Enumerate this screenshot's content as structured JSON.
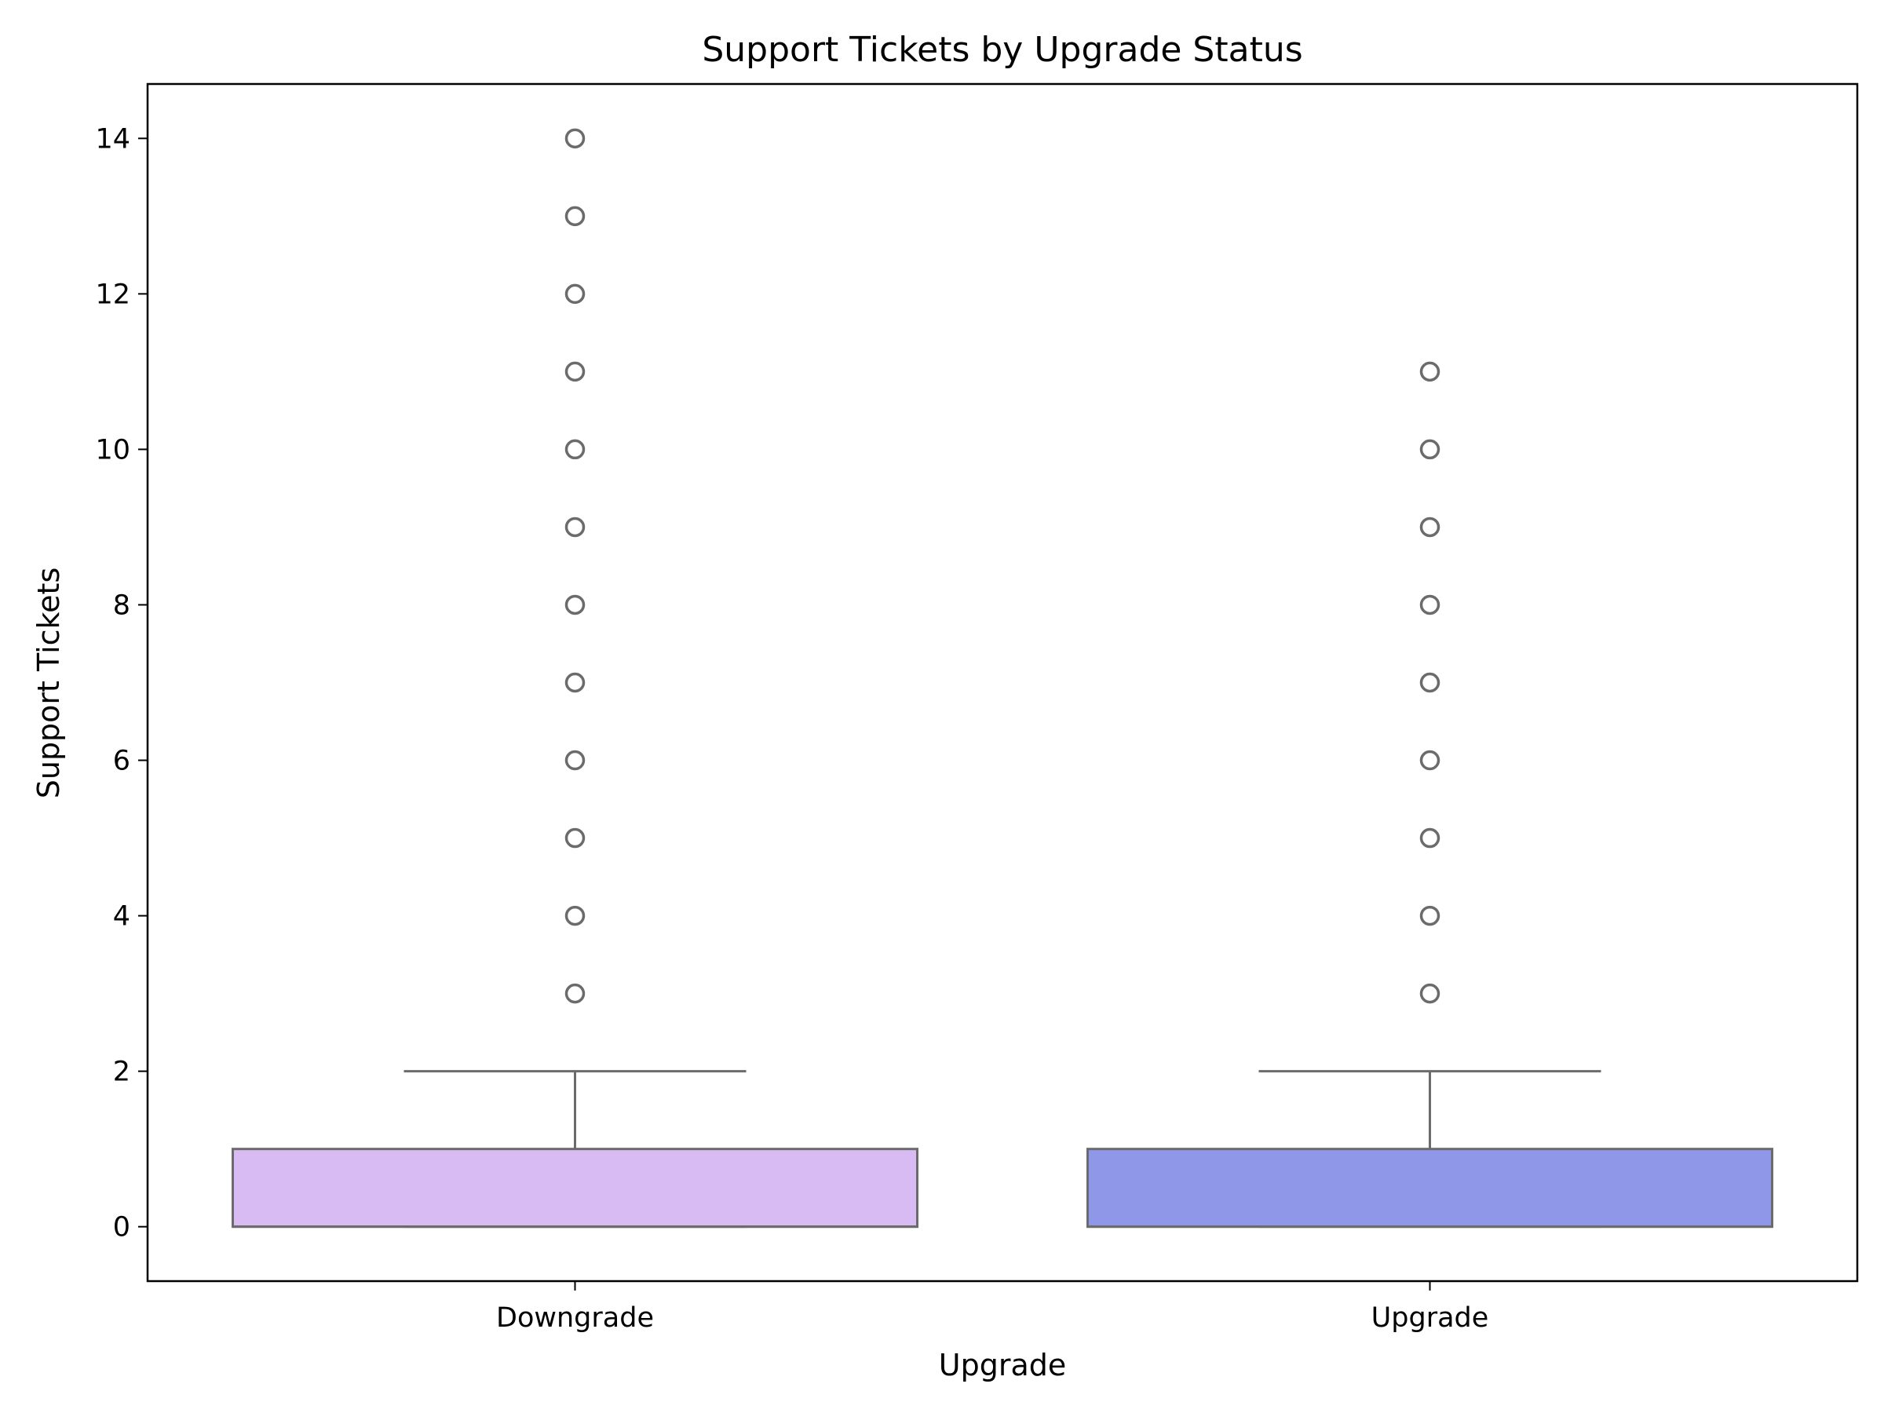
{
  "chart_data": {
    "type": "box",
    "title": "Support Tickets by Upgrade Status",
    "xlabel": "Upgrade",
    "ylabel": "Support Tickets",
    "categories": [
      "Downgrade",
      "Upgrade"
    ],
    "ylim": [
      -0.7,
      14.7
    ],
    "yticks": [
      0,
      2,
      4,
      6,
      8,
      10,
      12,
      14
    ],
    "grid": false,
    "legend": "none",
    "boxes": [
      {
        "category": "Downgrade",
        "whisker_low": 0,
        "q1": 0,
        "median": 0,
        "q3": 1,
        "whisker_high": 2,
        "outliers": [
          3,
          4,
          5,
          6,
          7,
          8,
          9,
          10,
          11,
          12,
          13,
          14
        ],
        "color": "#d8bbf3"
      },
      {
        "category": "Upgrade",
        "whisker_low": 0,
        "q1": 0,
        "median": 0,
        "q3": 1,
        "whisker_high": 2,
        "outliers": [
          3,
          4,
          5,
          6,
          7,
          8,
          9,
          10,
          11
        ],
        "color": "#8f98e8"
      }
    ],
    "colors": {
      "line": "#6b6b6b",
      "axes": "#000000"
    }
  }
}
